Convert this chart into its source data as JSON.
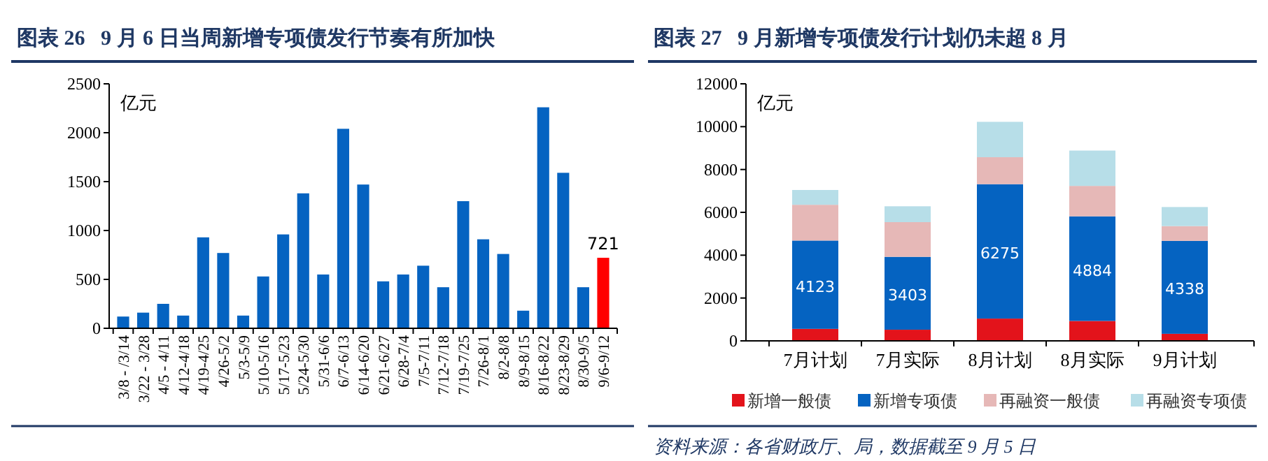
{
  "chart_data": [
    {
      "type": "bar",
      "title": "图表 26   9 月 6 日当周新增专项债发行节奏有所加快",
      "ylabel": "亿元",
      "categories": [
        "3/8 - /3/14",
        "3/22 - 3/28",
        "4/5 - 4/11",
        "4/12-4/18",
        "4/19-4/25",
        "4/26-5/2",
        "5/3-5/9",
        "5/10-5/16",
        "5/17-5/23",
        "5/24-5/30",
        "5/31-6/6",
        "6/7-6/13",
        "6/14-6/20",
        "6/21-6/27",
        "6/28-7/4",
        "7/5-7/11",
        "7/12-7/18",
        "7/19-7/25",
        "7/26-8/1",
        "8/2-8/8",
        "8/9-8/15",
        "8/16-8/22",
        "8/23-8/29",
        "8/30-9/5",
        "9/6-9/12"
      ],
      "values": [
        120,
        160,
        250,
        130,
        930,
        770,
        130,
        530,
        960,
        1380,
        550,
        2040,
        1470,
        480,
        550,
        640,
        420,
        1300,
        910,
        760,
        180,
        2260,
        1590,
        420,
        721
      ],
      "colors": [
        "#0563c1",
        "#0563c1",
        "#0563c1",
        "#0563c1",
        "#0563c1",
        "#0563c1",
        "#0563c1",
        "#0563c1",
        "#0563c1",
        "#0563c1",
        "#0563c1",
        "#0563c1",
        "#0563c1",
        "#0563c1",
        "#0563c1",
        "#0563c1",
        "#0563c1",
        "#0563c1",
        "#0563c1",
        "#0563c1",
        "#0563c1",
        "#0563c1",
        "#0563c1",
        "#0563c1",
        "#ff0000"
      ],
      "value_labels": [
        null,
        null,
        null,
        null,
        null,
        null,
        null,
        null,
        null,
        null,
        null,
        null,
        null,
        null,
        null,
        null,
        null,
        null,
        null,
        null,
        null,
        null,
        null,
        null,
        "721"
      ],
      "ylim": [
        0,
        2500
      ],
      "yticks": [
        0,
        500,
        1000,
        1500,
        2000,
        2500
      ],
      "grid": false,
      "legend": false
    },
    {
      "type": "bar",
      "title": "图表 27   9 月新增专项债发行计划仍未超 8 月",
      "ylabel": "亿元",
      "stacked": true,
      "categories": [
        "7月计划",
        "7月实际",
        "8月计划",
        "8月实际",
        "9月计划"
      ],
      "series": [
        {
          "name": "新增一般债",
          "color": "#e3131b",
          "values": [
            560,
            520,
            1040,
            930,
            330
          ]
        },
        {
          "name": "新增专项债",
          "color": "#0563c1",
          "values": [
            4123,
            3403,
            6275,
            4884,
            4338
          ],
          "value_labels": [
            "4123",
            "3403",
            "6275",
            "4884",
            "4338"
          ]
        },
        {
          "name": "再融资一般债",
          "color": "#e6b8b7",
          "values": [
            1670,
            1620,
            1260,
            1420,
            690
          ]
        },
        {
          "name": "再融资专项债",
          "color": "#b7dee8",
          "values": [
            690,
            740,
            1650,
            1650,
            890
          ]
        }
      ],
      "ylim": [
        0,
        12000
      ],
      "yticks": [
        0,
        2000,
        4000,
        6000,
        8000,
        10000,
        12000
      ],
      "grid": false,
      "legend": "bottom",
      "annotations": [
        "资料来源：各省财政厅、局，数据截至 9 月 5 日"
      ]
    }
  ]
}
